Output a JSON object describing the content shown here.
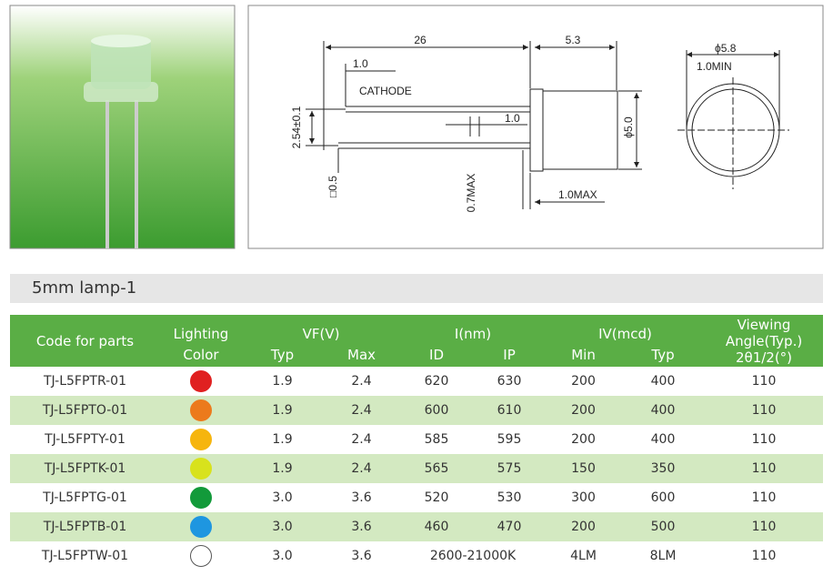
{
  "drawing": {
    "length": "26",
    "body_length": "5.3",
    "lead_offset": "1.0",
    "cathode": "CATHODE",
    "pitch": "2.54±0.1",
    "lead_gap": "1.0",
    "body_diameter": "ϕ5.0",
    "lead_size": "□0.5",
    "lead_max": "0.7MAX",
    "flange_max": "1.0MAX",
    "flange_diameter": "ϕ5.8",
    "flange_min": "1.0MIN"
  },
  "section_title": "5mm lamp-1",
  "table": {
    "header": {
      "code": "Code for parts",
      "lighting": "Lighting",
      "color": "Color",
      "vf": "VF(V)",
      "vf_typ": "Typ",
      "vf_max": "Max",
      "wavelength": "I(nm)",
      "id": "ID",
      "ip": "IP",
      "iv": "IV(mcd)",
      "iv_min": "Min",
      "iv_typ": "Typ",
      "angle_1": "Viewing",
      "angle_2": "Angle(Typ.)",
      "angle_3": "2θ1/2(°)"
    },
    "rows": [
      {
        "code": "TJ-L5FPTR-01",
        "color": "#e02020",
        "vf_typ": "1.9",
        "vf_max": "2.4",
        "id": "620",
        "ip": "630",
        "iv_min": "200",
        "iv_typ": "400",
        "angle": "110"
      },
      {
        "code": "TJ-L5FPTO-01",
        "color": "#ec7a1c",
        "vf_typ": "1.9",
        "vf_max": "2.4",
        "id": "600",
        "ip": "610",
        "iv_min": "200",
        "iv_typ": "400",
        "angle": "110"
      },
      {
        "code": "TJ-L5FPTY-01",
        "color": "#f6b50e",
        "vf_typ": "1.9",
        "vf_max": "2.4",
        "id": "585",
        "ip": "595",
        "iv_min": "200",
        "iv_typ": "400",
        "angle": "110"
      },
      {
        "code": "TJ-L5FPTK-01",
        "color": "#d8e21c",
        "vf_typ": "1.9",
        "vf_max": "2.4",
        "id": "565",
        "ip": "575",
        "iv_min": "150",
        "iv_typ": "350",
        "angle": "110"
      },
      {
        "code": "TJ-L5FPTG-01",
        "color": "#129a3a",
        "vf_typ": "3.0",
        "vf_max": "3.6",
        "id": "520",
        "ip": "530",
        "iv_min": "300",
        "iv_typ": "600",
        "angle": "110"
      },
      {
        "code": "TJ-L5FPTB-01",
        "color": "#1e96e0",
        "vf_typ": "3.0",
        "vf_max": "3.6",
        "id": "460",
        "ip": "470",
        "iv_min": "200",
        "iv_typ": "500",
        "angle": "110"
      },
      {
        "code": "TJ-L5FPTW-01",
        "color": "#ffffff",
        "vf_typ": "3.0",
        "vf_max": "3.6",
        "cct": "2600-21000K",
        "iv_min": "4LM",
        "iv_typ": "8LM",
        "angle": "110"
      }
    ]
  }
}
